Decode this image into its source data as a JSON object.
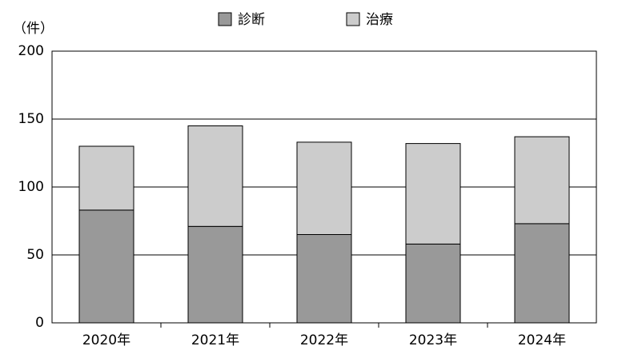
{
  "chart_data": {
    "type": "stacked_bar",
    "y_label": "（件）",
    "categories": [
      "2020年",
      "2021年",
      "2022年",
      "2023年",
      "2024年"
    ],
    "series": [
      {
        "name": "診断",
        "color": "#999999",
        "values": [
          83,
          71,
          65,
          58,
          73
        ]
      },
      {
        "name": "治療",
        "color": "#cccccc",
        "values": [
          47,
          74,
          68,
          74,
          64
        ]
      }
    ],
    "ylim": [
      0,
      200
    ],
    "yticks": [
      0,
      50,
      100,
      150,
      200
    ],
    "grid": true,
    "legend": "top"
  }
}
